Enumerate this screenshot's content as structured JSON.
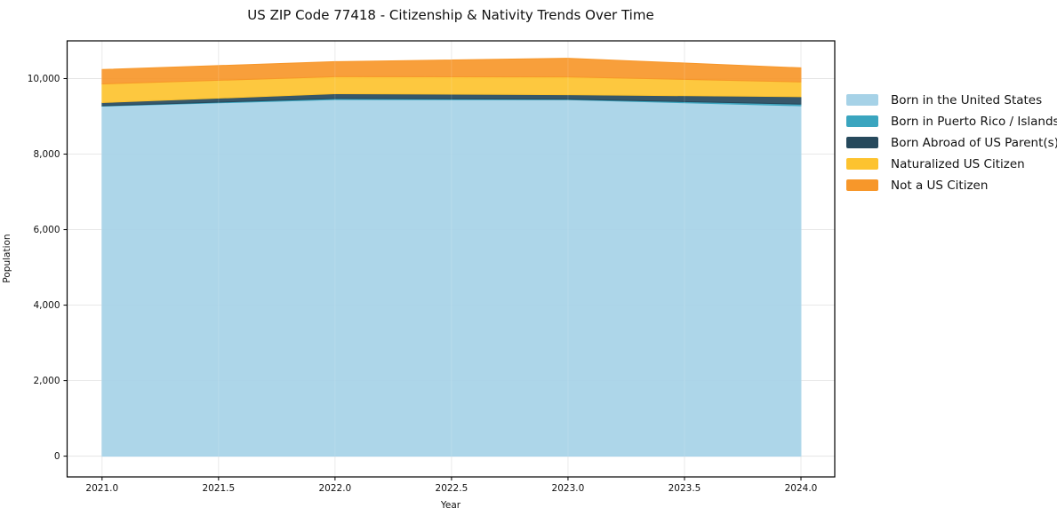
{
  "chart_data": {
    "type": "area",
    "stacked": true,
    "title": "US ZIP Code 77418 - Citizenship & Nativity Trends Over Time",
    "xlabel": "Year",
    "ylabel": "Population",
    "x": [
      2021,
      2022,
      2023,
      2024
    ],
    "series": [
      {
        "name": "Born in the United States",
        "color": "#a6d2e7",
        "values": [
          9270,
          9445,
          9440,
          9280
        ]
      },
      {
        "name": "Born in Puerto Rico / Islands",
        "color": "#3aa5bf",
        "values": [
          10,
          25,
          15,
          45
        ]
      },
      {
        "name": "Born Abroad of US Parent(s)",
        "color": "#26495c",
        "values": [
          85,
          130,
          120,
          195
        ]
      },
      {
        "name": "Naturalized US Citizen",
        "color": "#fdc32f",
        "values": [
          495,
          450,
          470,
          390
        ]
      },
      {
        "name": "Not a US Citizen",
        "color": "#f7972a",
        "values": [
          380,
          400,
          495,
          375
        ]
      }
    ],
    "x_ticks": [
      2021.0,
      2021.5,
      2022.0,
      2022.5,
      2023.0,
      2023.5,
      2024.0
    ],
    "x_tick_labels": [
      "2021.0",
      "2021.5",
      "2022.0",
      "2022.5",
      "2023.0",
      "2023.5",
      "2024.0"
    ],
    "y_ticks": [
      0,
      2000,
      4000,
      6000,
      8000,
      10000
    ],
    "y_tick_labels": [
      "0",
      "2,000",
      "4,000",
      "6,000",
      "8,000",
      "10,000"
    ],
    "xlim": [
      2020.85,
      2024.145
    ],
    "ylim": [
      -550,
      11000
    ],
    "grid": true,
    "legend_position": "right"
  },
  "colors": {
    "background": "#ffffff",
    "grid": "#dcdcdc",
    "spine": "#000000",
    "tick_text": "#111111"
  }
}
